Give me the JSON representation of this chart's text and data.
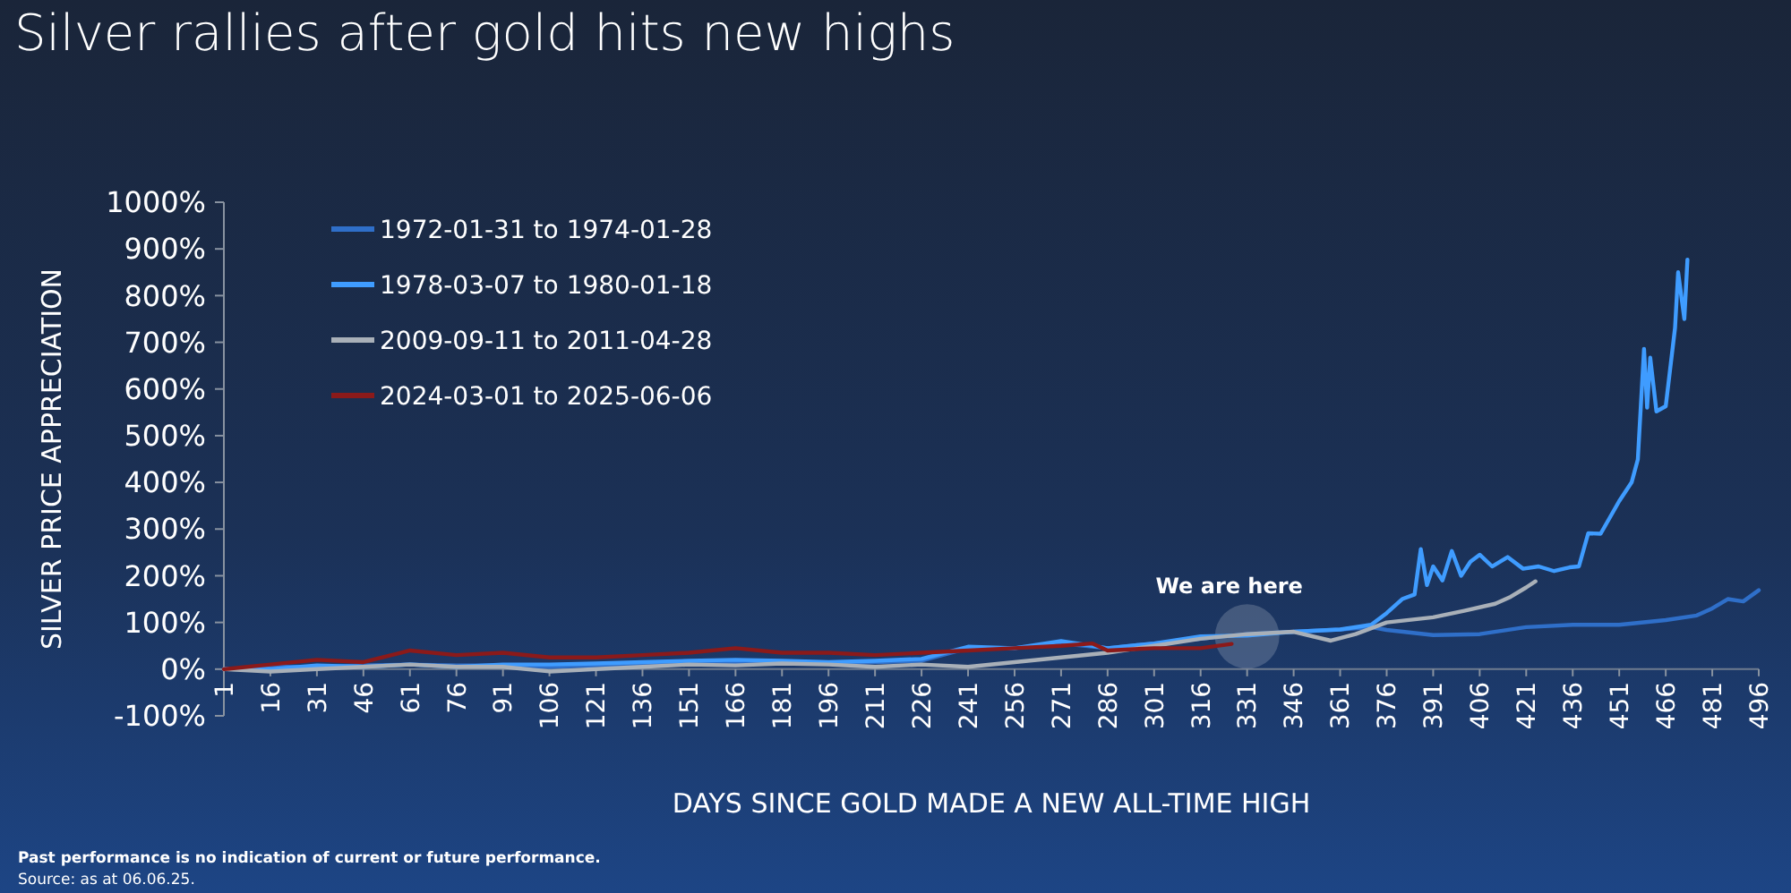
{
  "chart_data": {
    "type": "line",
    "title": "Silver rallies after gold hits new highs",
    "xlabel": "DAYS SINCE GOLD MADE A NEW ALL-TIME HIGH",
    "ylabel": "SILVER PRICE APPRECIATION",
    "xlim": [
      1,
      496
    ],
    "xticks": [
      1,
      16,
      31,
      46,
      61,
      76,
      91,
      106,
      121,
      136,
      151,
      166,
      181,
      196,
      211,
      226,
      241,
      256,
      271,
      286,
      301,
      316,
      331,
      346,
      361,
      376,
      391,
      406,
      421,
      436,
      451,
      466,
      481,
      496
    ],
    "ylim": [
      -100,
      1000
    ],
    "yticks": [
      {
        "value": -100,
        "label": "-100%"
      },
      {
        "value": 0,
        "label": "0%"
      },
      {
        "value": 100,
        "label": "100%"
      },
      {
        "value": 200,
        "label": "200%"
      },
      {
        "value": 300,
        "label": "300%"
      },
      {
        "value": 400,
        "label": "400%"
      },
      {
        "value": 500,
        "label": "500%"
      },
      {
        "value": 600,
        "label": "600%"
      },
      {
        "value": 700,
        "label": "700%"
      },
      {
        "value": 800,
        "label": "800%"
      },
      {
        "value": 900,
        "label": "900%"
      },
      {
        "value": 1000,
        "label": "1000%"
      }
    ],
    "grid": false,
    "legend": "top left",
    "marker": "none",
    "line_style": "solid",
    "series": [
      {
        "name": "1972-01-31 to 1974-01-28",
        "color": "#2f6fc9",
        "x": [
          1,
          16,
          31,
          46,
          61,
          76,
          91,
          106,
          121,
          136,
          151,
          166,
          181,
          196,
          211,
          226,
          241,
          256,
          271,
          286,
          301,
          316,
          331,
          346,
          361,
          371,
          376,
          391,
          406,
          421,
          436,
          451,
          466,
          476,
          481,
          486,
          491,
          496
        ],
        "values": [
          0,
          5,
          5,
          8,
          10,
          8,
          8,
          5,
          8,
          10,
          15,
          15,
          12,
          12,
          15,
          18,
          45,
          45,
          55,
          45,
          55,
          65,
          75,
          80,
          85,
          90,
          84,
          73,
          75,
          90,
          95,
          95,
          105,
          115,
          130,
          150,
          145,
          169
        ]
      },
      {
        "name": "1978-03-07 to 1980-01-18",
        "color": "#3f9cff",
        "x": [
          1,
          16,
          31,
          46,
          61,
          76,
          91,
          106,
          121,
          136,
          151,
          166,
          181,
          196,
          211,
          226,
          241,
          256,
          271,
          286,
          301,
          316,
          331,
          346,
          361,
          371,
          376,
          381,
          385,
          387,
          389,
          391,
          394,
          397,
          400,
          403,
          406,
          410,
          415,
          420,
          425,
          430,
          435,
          438,
          441,
          445,
          451,
          455,
          457,
          459,
          460,
          461,
          463,
          466,
          469,
          470,
          472,
          473
        ],
        "values": [
          0,
          0,
          8,
          5,
          10,
          5,
          10,
          10,
          12,
          15,
          18,
          20,
          18,
          15,
          18,
          22,
          48,
          45,
          60,
          45,
          55,
          70,
          72,
          80,
          85,
          95,
          120,
          150,
          160,
          257,
          180,
          220,
          190,
          253,
          200,
          230,
          245,
          220,
          240,
          215,
          220,
          210,
          218,
          220,
          291,
          290,
          360,
          400,
          449,
          686,
          560,
          667,
          552,
          563,
          731,
          850,
          750,
          877
        ]
      },
      {
        "name": "2009-09-11 to 2011-04-28",
        "color": "#a9b0b8",
        "x": [
          1,
          16,
          31,
          46,
          61,
          76,
          91,
          106,
          121,
          136,
          151,
          166,
          181,
          196,
          211,
          226,
          241,
          256,
          271,
          286,
          301,
          316,
          331,
          346,
          358,
          366,
          376,
          391,
          401,
          411,
          416,
          421,
          424
        ],
        "values": [
          0,
          -5,
          0,
          5,
          10,
          5,
          5,
          -5,
          0,
          5,
          10,
          8,
          12,
          10,
          5,
          10,
          5,
          15,
          25,
          35,
          50,
          65,
          75,
          80,
          61,
          75,
          100,
          111,
          125,
          140,
          155,
          175,
          188
        ]
      },
      {
        "name": "2024-03-01 to 2025-06-06",
        "color": "#8b1a1a",
        "x": [
          1,
          16,
          31,
          46,
          58,
          61,
          76,
          91,
          106,
          121,
          136,
          151,
          166,
          181,
          196,
          211,
          226,
          241,
          256,
          271,
          281,
          286,
          301,
          316,
          326
        ],
        "values": [
          0,
          10,
          20,
          15,
          35,
          40,
          30,
          35,
          25,
          25,
          30,
          35,
          45,
          35,
          35,
          30,
          35,
          40,
          45,
          50,
          55,
          40,
          45,
          45,
          54
        ]
      }
    ],
    "annotations": [
      {
        "text": "We are here",
        "x": 331,
        "y": 70
      },
      "Past performance is no indication of current or future performance.",
      "Source: as at 06.06.25."
    ]
  }
}
